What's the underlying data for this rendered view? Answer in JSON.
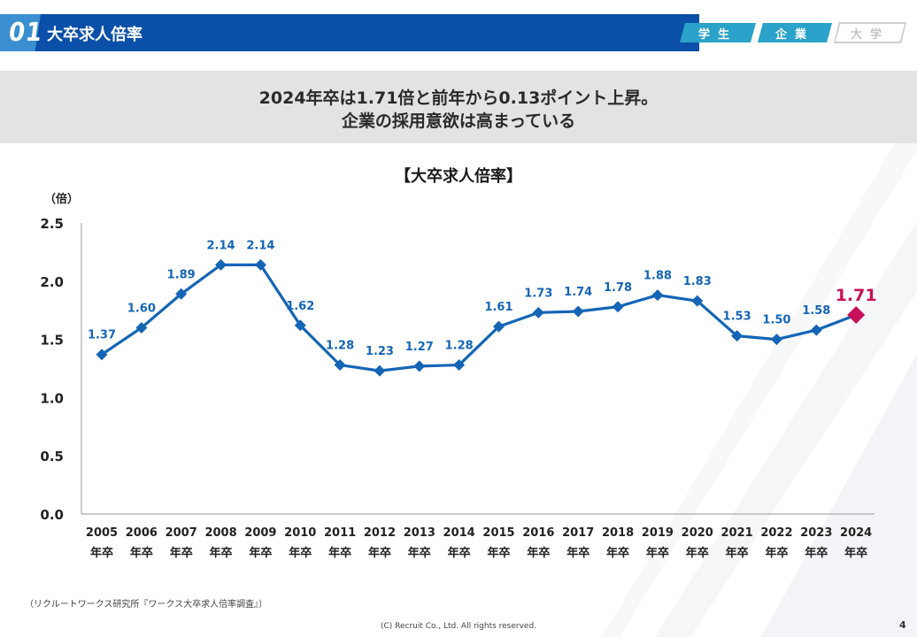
{
  "header": {
    "number": "01",
    "title": "大卒求人倍率",
    "tags": [
      {
        "label": "学生",
        "active": true
      },
      {
        "label": "企業",
        "active": true
      },
      {
        "label": "大学",
        "active": false
      }
    ]
  },
  "headline": {
    "line1": "2024年卒は1.71倍と前年から0.13ポイント上昇。",
    "line2": "企業の採用意欲は高まっている"
  },
  "colors": {
    "primary": "#0a4fa8",
    "accent": "#3a8fd0",
    "line": "#1565b6",
    "highlight": "#c8105a",
    "tag": "#2aa2c9"
  },
  "chart_data": {
    "type": "line",
    "title": "【大卒求人倍率】",
    "ylabel": "（倍）",
    "xlabel": "",
    "ylim": [
      0,
      2.5
    ],
    "yticks": [
      "0.0",
      "0.5",
      "1.0",
      "1.5",
      "2.0",
      "2.5"
    ],
    "ytick_values": [
      0,
      0.5,
      1.0,
      1.5,
      2.0,
      2.5
    ],
    "x_suffix": "年卒",
    "categories": [
      "2005",
      "2006",
      "2007",
      "2008",
      "2009",
      "2010",
      "2011",
      "2012",
      "2013",
      "2014",
      "2015",
      "2016",
      "2017",
      "2018",
      "2019",
      "2020",
      "2021",
      "2022",
      "2023",
      "2024"
    ],
    "series": [
      {
        "values": [
          1.37,
          1.6,
          1.89,
          2.14,
          2.14,
          1.62,
          1.28,
          1.23,
          1.27,
          1.28,
          1.61,
          1.73,
          1.74,
          1.78,
          1.88,
          1.83,
          1.53,
          1.5,
          1.58,
          1.71
        ],
        "labels": [
          "1.37",
          "1.60",
          "1.89",
          "2.14",
          "2.14",
          "1.62",
          "1.28",
          "1.23",
          "1.27",
          "1.28",
          "1.61",
          "1.73",
          "1.74",
          "1.78",
          "1.88",
          "1.83",
          "1.53",
          "1.50",
          "1.58",
          "1.71"
        ]
      }
    ],
    "highlight_index": 19,
    "grid": false,
    "legend": "none"
  },
  "footer": {
    "source": "（リクルートワークス研究所『ワークス大卒求人倍率調査』）",
    "copyright": "(C) Recruit  Co., Ltd. All rights reserved.",
    "page": "4"
  }
}
